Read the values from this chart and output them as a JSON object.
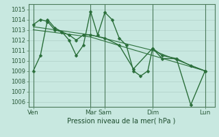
{
  "background_color": "#c8e8e0",
  "grid_color": "#a8c8c0",
  "line_color": "#2a6e3a",
  "vline_color": "#4a7a5a",
  "title": "Pression niveau de la mer( hPa )",
  "ylim": [
    1005.5,
    1015.5
  ],
  "yticks": [
    1006,
    1007,
    1008,
    1009,
    1010,
    1011,
    1012,
    1013,
    1014,
    1015
  ],
  "xtick_labels": [
    "Ven",
    "Mar",
    "Sam",
    "Dim",
    "Lun"
  ],
  "xtick_positions": [
    0,
    12,
    15,
    25,
    36
  ],
  "vline_positions": [
    0,
    12,
    15,
    25,
    36
  ],
  "xlim": [
    -1,
    38
  ],
  "series": [
    {
      "x": [
        0,
        1.5,
        3,
        4.5,
        6,
        7.5,
        9,
        10.5,
        12,
        13.5,
        15,
        16.5,
        18,
        19.5,
        21,
        22.5,
        24,
        25,
        27,
        30,
        33,
        36
      ],
      "y": [
        1009,
        1010.5,
        1014,
        1013.2,
        1012.8,
        1012.0,
        1010.5,
        1011.5,
        1014.8,
        1012.5,
        1014.7,
        1014.0,
        1012.2,
        1011.5,
        1009.0,
        1008.5,
        1009.0,
        1011.2,
        1010.2,
        1010.2,
        1005.7,
        1009.0
      ],
      "marker": "D",
      "markersize": 2.5,
      "linewidth": 1.0
    },
    {
      "x": [
        0,
        1.5,
        3,
        4.5,
        6,
        7.5,
        9,
        10.5,
        12,
        15,
        18,
        21,
        25,
        27,
        30,
        33,
        36
      ],
      "y": [
        1013.5,
        1014.0,
        1013.8,
        1013.0,
        1012.8,
        1012.5,
        1012.0,
        1012.5,
        1012.5,
        1012.2,
        1011.5,
        1009.2,
        1011.2,
        1010.5,
        1010.2,
        1009.5,
        1009.0
      ],
      "marker": "D",
      "markersize": 2.5,
      "linewidth": 1.0
    },
    {
      "x": [
        0,
        12,
        25,
        36
      ],
      "y": [
        1013.3,
        1012.5,
        1011.0,
        1009.0
      ],
      "marker": null,
      "markersize": 0,
      "linewidth": 0.8
    },
    {
      "x": [
        0,
        12,
        25,
        36
      ],
      "y": [
        1013.0,
        1012.3,
        1010.5,
        1009.0
      ],
      "marker": null,
      "markersize": 0,
      "linewidth": 0.8
    }
  ]
}
